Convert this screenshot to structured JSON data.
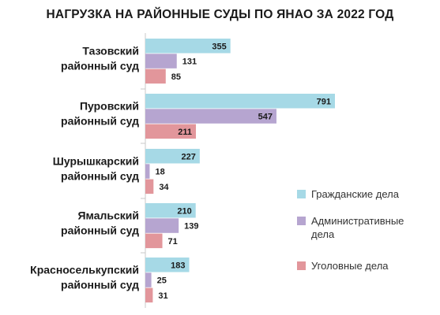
{
  "chart_data": {
    "type": "bar",
    "orientation": "horizontal",
    "title": "НАГРУЗКА НА РАЙОННЫЕ СУДЫ ПО ЯНАО ЗА 2022 ГОД",
    "categories": [
      [
        "Тазовский",
        "районный суд"
      ],
      [
        "Пуровский",
        "районный суд"
      ],
      [
        "Шурышкарский",
        "районный суд"
      ],
      [
        "Ямальский",
        "районный суд"
      ],
      [
        "Красноселькупский",
        "районный суд"
      ]
    ],
    "series": [
      {
        "name": "Гражданские дела",
        "values": [
          355,
          791,
          227,
          210,
          183
        ],
        "color": "#a6d9e6"
      },
      {
        "name": [
          "Административные",
          "дела"
        ],
        "values": [
          131,
          547,
          18,
          139,
          25
        ],
        "color": "#b6a5d0"
      },
      {
        "name": "Уголовные дела",
        "values": [
          85,
          211,
          34,
          71,
          31
        ],
        "color": "#e2969b"
      }
    ],
    "legend_position": "right",
    "grid": false
  }
}
